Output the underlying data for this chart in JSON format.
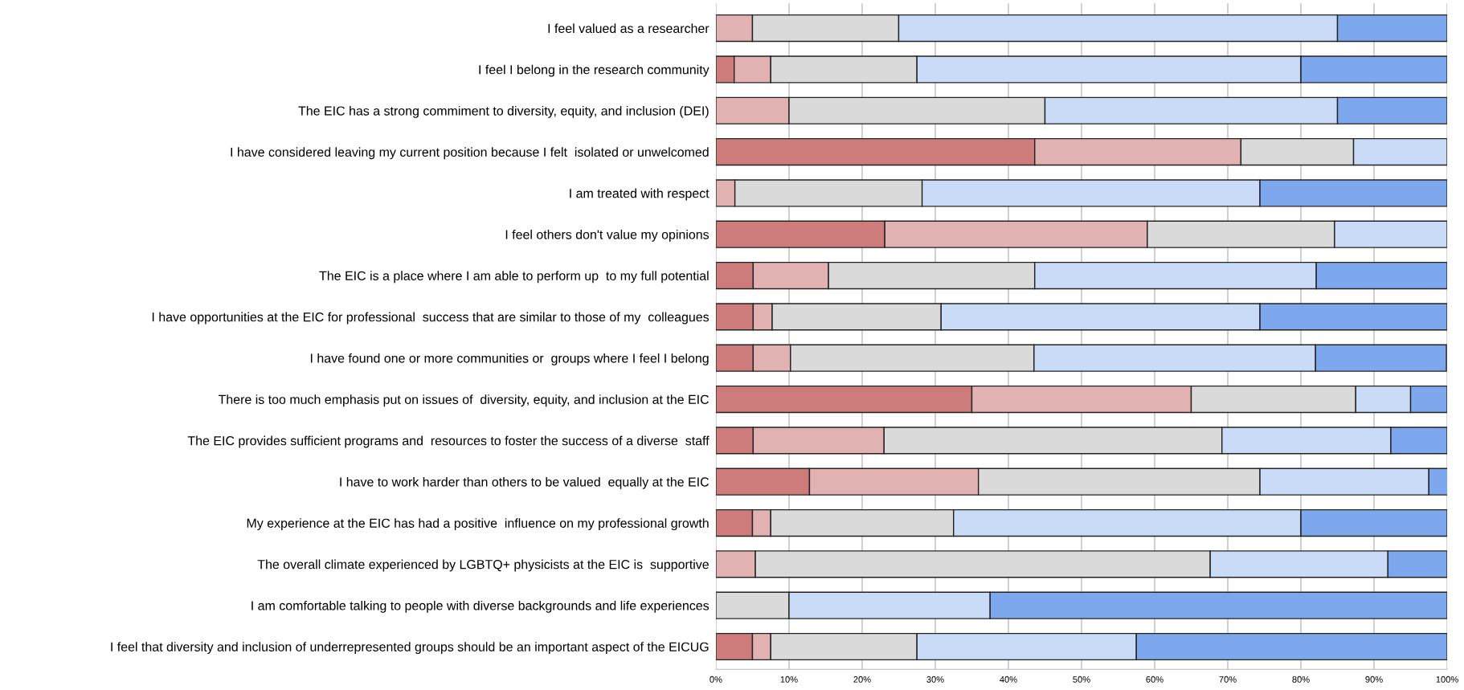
{
  "chart_data": {
    "type": "bar",
    "orientation": "horizontal",
    "stacked": true,
    "categories": [
      "I feel valued as a researcher",
      "I feel I belong in the research community",
      "The EIC has a strong commiment to diversity, equity, and inclusion (DEI)",
      "I have considered leaving my current position because I felt  isolated or unwelcomed",
      "I am treated with respect",
      "I feel others don't value my opinions",
      "The EIC is a place where I am able to perform up  to my full potential",
      "I have opportunities at the EIC for professional  success that are similar to those of my  colleagues",
      "I have found one or more communities or  groups where I feel I belong",
      "There is too much emphasis put on issues of  diversity, equity, and inclusion at the EIC",
      "The EIC provides sufficient programs and  resources to foster the success of a diverse  staff",
      "I have to work harder than others to be valued  equally at the EIC",
      "My experience at the EIC has had a positive  influence on my professional growth",
      "The overall climate experienced by LGBTQ+ physicists at the EIC is  supportive",
      "I am comfortable talking to people with diverse backgrounds and life experiences",
      "I feel that diversity and inclusion of underrepresented groups should be an important aspect of the EICUG"
    ],
    "series": [
      {
        "color": "#cd7c7b",
        "values": [
          0,
          2.5,
          0,
          43.6,
          0,
          23.1,
          5.1,
          5.1,
          5.1,
          35,
          5.1,
          12.8,
          5,
          0,
          0,
          5
        ]
      },
      {
        "color": "#e2b1b1",
        "values": [
          5,
          5,
          10,
          28.2,
          2.6,
          35.9,
          10.3,
          2.6,
          5.1,
          30,
          17.9,
          23.1,
          2.5,
          5.4,
          0,
          2.5
        ]
      },
      {
        "color": "#dadada",
        "values": [
          20,
          20,
          35,
          15.4,
          25.6,
          25.6,
          28.2,
          23.1,
          33.3,
          22.5,
          46.2,
          38.5,
          25,
          62.2,
          10,
          20
        ]
      },
      {
        "color": "#c9dbf7",
        "values": [
          60,
          52.5,
          40,
          12.8,
          46.2,
          15.4,
          38.5,
          43.6,
          38.5,
          7.5,
          23.1,
          23.1,
          47.5,
          24.3,
          27.5,
          30
        ]
      },
      {
        "color": "#7ea8ee",
        "values": [
          15,
          20,
          15,
          0,
          25.6,
          0,
          17.9,
          25.6,
          17.9,
          5,
          7.7,
          2.6,
          20,
          8.1,
          62.5,
          42.5
        ]
      }
    ],
    "xlim": [
      0,
      100
    ],
    "xticks": [
      {
        "value": 0,
        "label": "0%"
      },
      {
        "value": 10,
        "label": "10%"
      },
      {
        "value": 20,
        "label": "20%"
      },
      {
        "value": 30,
        "label": "30%"
      },
      {
        "value": 40,
        "label": "40%"
      },
      {
        "value": 50,
        "label": "50%"
      },
      {
        "value": 60,
        "label": "60%"
      },
      {
        "value": 70,
        "label": "70%"
      },
      {
        "value": 80,
        "label": "80%"
      },
      {
        "value": 90,
        "label": "90%"
      },
      {
        "value": 100,
        "label": "100%"
      }
    ],
    "grid": "x"
  }
}
